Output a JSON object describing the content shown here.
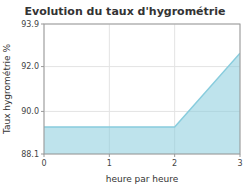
{
  "chart_data": {
    "type": "area",
    "title": "Evolution du taux d'hygrométrie",
    "x_label": "heure par heure",
    "y_label": "Taux hygrométrie %",
    "x": [
      0,
      2,
      3
    ],
    "values": [
      89.3,
      89.3,
      92.6
    ],
    "color": "#88ccdd",
    "xlim": [
      0,
      3
    ],
    "ylim": [
      88.1,
      93.9
    ],
    "xticks": [
      0,
      1,
      2,
      3
    ],
    "yticks": [
      88.1,
      {
        "value": 90,
        "label": "90.0"
      },
      {
        "value": 92,
        "label": "92.0"
      },
      93.9
    ],
    "grid": true
  }
}
